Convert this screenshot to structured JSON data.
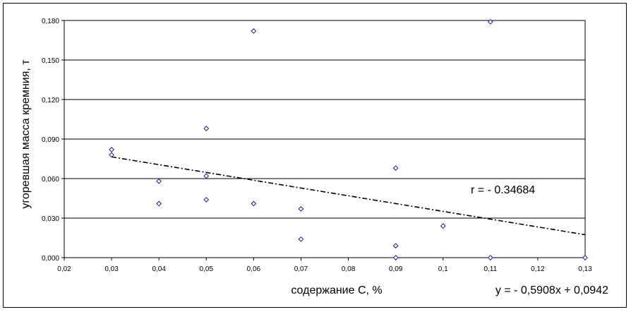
{
  "chart_data": {
    "type": "scatter",
    "title": "",
    "xlabel": "содержание С, %",
    "ylabel": "угоревшая масса кремния, т",
    "xlim": [
      0.02,
      0.13
    ],
    "ylim": [
      0.0,
      0.18
    ],
    "x_ticks": [
      "0,02",
      "0,03",
      "0,04",
      "0,05",
      "0,06",
      "0,07",
      "0,08",
      "0,09",
      "0,1",
      "0,11",
      "0,12",
      "0,13"
    ],
    "y_ticks": [
      "0,000",
      "0,030",
      "0,060",
      "0,090",
      "0,120",
      "0,150",
      "0,180"
    ],
    "grid": "horizontal",
    "legend": "none",
    "marker_color": "#1f1f8f",
    "series": [
      {
        "points": [
          {
            "x": 0.03,
            "y": 0.082
          },
          {
            "x": 0.03,
            "y": 0.078
          },
          {
            "x": 0.04,
            "y": 0.058
          },
          {
            "x": 0.04,
            "y": 0.041
          },
          {
            "x": 0.05,
            "y": 0.098
          },
          {
            "x": 0.05,
            "y": 0.062
          },
          {
            "x": 0.05,
            "y": 0.044
          },
          {
            "x": 0.06,
            "y": 0.172
          },
          {
            "x": 0.06,
            "y": 0.041
          },
          {
            "x": 0.07,
            "y": 0.037
          },
          {
            "x": 0.07,
            "y": 0.014
          },
          {
            "x": 0.09,
            "y": 0.068
          },
          {
            "x": 0.09,
            "y": 0.009
          },
          {
            "x": 0.09,
            "y": 0.0
          },
          {
            "x": 0.1,
            "y": 0.024
          },
          {
            "x": 0.11,
            "y": 0.179
          },
          {
            "x": 0.11,
            "y": 0.0
          },
          {
            "x": 0.13,
            "y": 0.0
          }
        ]
      }
    ],
    "trendline": {
      "slope": -0.5908,
      "intercept": 0.0942,
      "x_range": [
        0.03,
        0.13
      ],
      "style": "dash-dot"
    },
    "annotations": {
      "r_label": "r = - 0.34684",
      "equation": "y = - 0,5908x + 0,0942"
    }
  }
}
